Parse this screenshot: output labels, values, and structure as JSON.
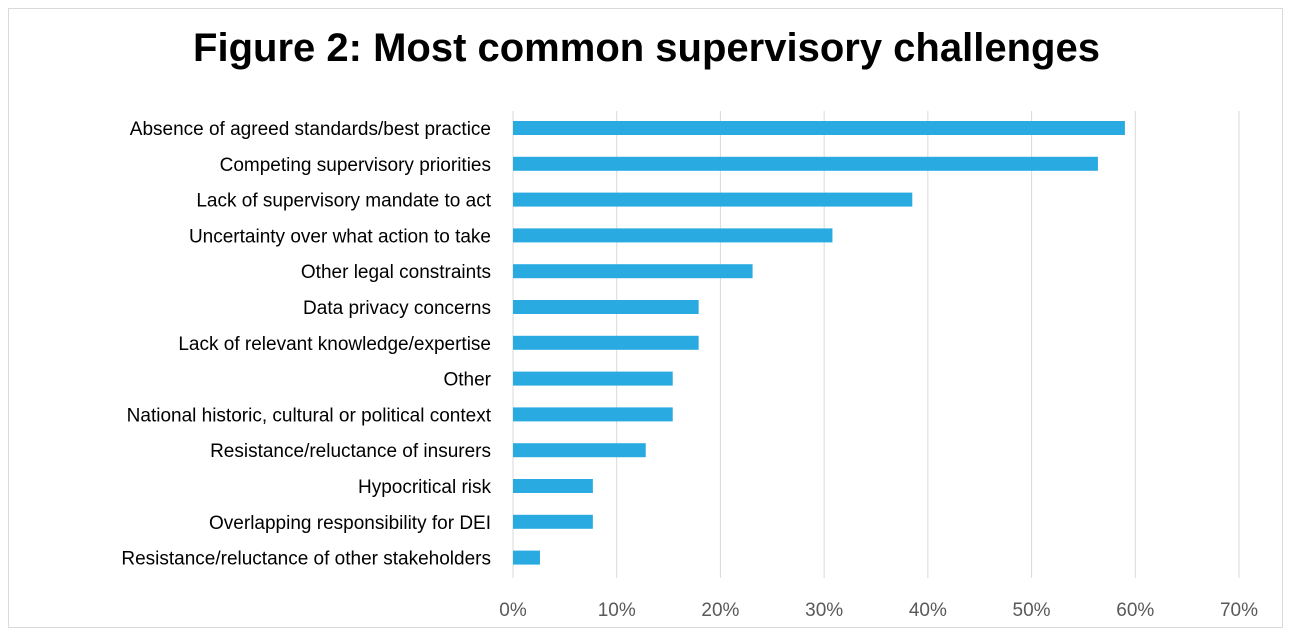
{
  "chart_data": {
    "type": "bar",
    "orientation": "horizontal",
    "title": "Figure 2: Most common supervisory challenges",
    "categories": [
      "Absence of agreed standards/best practice",
      "Competing supervisory priorities",
      "Lack of supervisory mandate to act",
      "Uncertainty over what action to take",
      "Other legal constraints",
      "Data privacy concerns",
      "Lack of relevant knowledge/expertise ",
      "Other",
      "National historic, cultural or political context",
      "Resistance/reluctance of insurers",
      "Hypocritical risk ",
      "Overlapping responsibility for DEI",
      "Resistance/reluctance of other stakeholders"
    ],
    "values": [
      59,
      56.4,
      38.5,
      30.8,
      23.1,
      17.9,
      17.9,
      15.4,
      15.4,
      12.8,
      7.7,
      7.7,
      2.6
    ],
    "xlim": [
      0,
      70
    ],
    "xticks": [
      "0%",
      "10%",
      "20%",
      "30%",
      "40%",
      "50%",
      "60%",
      "70%"
    ],
    "bar_color": "#29abe2",
    "gridlines": true,
    "gridline_color": "#d9d9d9"
  }
}
